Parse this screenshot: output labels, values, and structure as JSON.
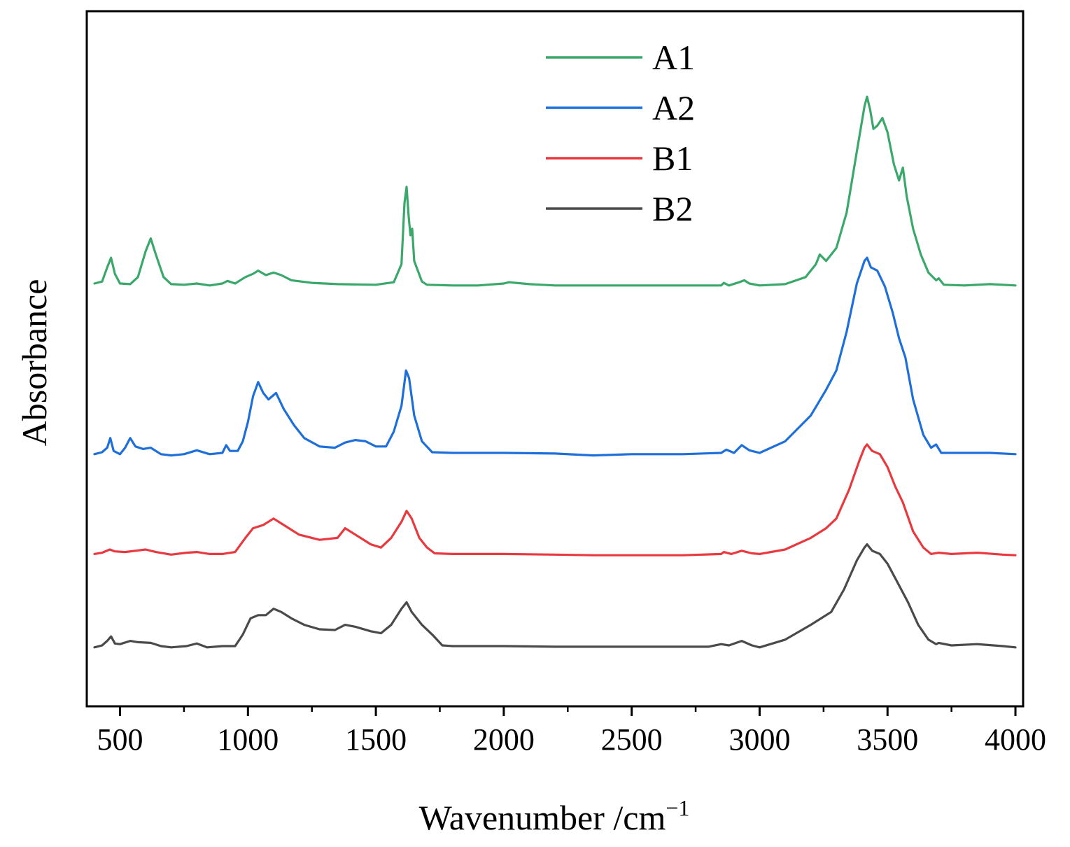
{
  "chart_data": {
    "type": "line",
    "title": "",
    "xlabel": "Wavenumber /cm",
    "xlabel_superscript": "−1",
    "ylabel": "Absorbance",
    "xlim": [
      370,
      4030
    ],
    "ylim": [
      0,
      10
    ],
    "x_ticks": [
      500,
      1000,
      1500,
      2000,
      2500,
      3000,
      3500,
      4000
    ],
    "x_tick_labels": [
      "500",
      "1000",
      "1500",
      "2000",
      "2500",
      "3000",
      "3500",
      "4000"
    ],
    "x_minor_ticks": [
      750,
      1250,
      1750,
      2250,
      2750,
      3250,
      3750
    ],
    "y_ticks_shown": false,
    "grid": false,
    "legend_position": "top-center",
    "series": [
      {
        "name": "A1",
        "color": "#3aa86b",
        "points": [
          [
            400,
            6.25
          ],
          [
            430,
            6.28
          ],
          [
            450,
            6.5
          ],
          [
            465,
            6.65
          ],
          [
            480,
            6.4
          ],
          [
            500,
            6.25
          ],
          [
            540,
            6.24
          ],
          [
            570,
            6.35
          ],
          [
            600,
            6.75
          ],
          [
            620,
            6.95
          ],
          [
            640,
            6.7
          ],
          [
            670,
            6.35
          ],
          [
            700,
            6.24
          ],
          [
            750,
            6.23
          ],
          [
            800,
            6.25
          ],
          [
            850,
            6.22
          ],
          [
            900,
            6.25
          ],
          [
            920,
            6.29
          ],
          [
            950,
            6.25
          ],
          [
            990,
            6.35
          ],
          [
            1020,
            6.4
          ],
          [
            1040,
            6.45
          ],
          [
            1070,
            6.38
          ],
          [
            1100,
            6.42
          ],
          [
            1130,
            6.38
          ],
          [
            1170,
            6.3
          ],
          [
            1250,
            6.26
          ],
          [
            1350,
            6.24
          ],
          [
            1500,
            6.23
          ],
          [
            1570,
            6.27
          ],
          [
            1600,
            6.55
          ],
          [
            1612,
            7.5
          ],
          [
            1620,
            7.75
          ],
          [
            1628,
            7.3
          ],
          [
            1635,
            7.0
          ],
          [
            1642,
            7.1
          ],
          [
            1650,
            6.6
          ],
          [
            1680,
            6.28
          ],
          [
            1700,
            6.23
          ],
          [
            1800,
            6.22
          ],
          [
            1900,
            6.22
          ],
          [
            2000,
            6.25
          ],
          [
            2020,
            6.27
          ],
          [
            2100,
            6.24
          ],
          [
            2200,
            6.22
          ],
          [
            2400,
            6.22
          ],
          [
            2600,
            6.22
          ],
          [
            2800,
            6.22
          ],
          [
            2850,
            6.22
          ],
          [
            2860,
            6.26
          ],
          [
            2880,
            6.22
          ],
          [
            2920,
            6.27
          ],
          [
            2940,
            6.3
          ],
          [
            2960,
            6.25
          ],
          [
            3000,
            6.22
          ],
          [
            3100,
            6.24
          ],
          [
            3180,
            6.35
          ],
          [
            3220,
            6.55
          ],
          [
            3235,
            6.7
          ],
          [
            3260,
            6.6
          ],
          [
            3300,
            6.8
          ],
          [
            3340,
            7.35
          ],
          [
            3380,
            8.3
          ],
          [
            3410,
            9.0
          ],
          [
            3420,
            9.15
          ],
          [
            3432,
            8.95
          ],
          [
            3445,
            8.65
          ],
          [
            3460,
            8.7
          ],
          [
            3480,
            8.82
          ],
          [
            3500,
            8.6
          ],
          [
            3525,
            8.1
          ],
          [
            3545,
            7.85
          ],
          [
            3560,
            8.05
          ],
          [
            3575,
            7.6
          ],
          [
            3600,
            7.1
          ],
          [
            3630,
            6.7
          ],
          [
            3660,
            6.42
          ],
          [
            3690,
            6.3
          ],
          [
            3700,
            6.33
          ],
          [
            3720,
            6.23
          ],
          [
            3800,
            6.22
          ],
          [
            3900,
            6.24
          ],
          [
            3950,
            6.23
          ],
          [
            4000,
            6.22
          ]
        ]
      },
      {
        "name": "A2",
        "color": "#1e6fd9",
        "points": [
          [
            400,
            3.6
          ],
          [
            430,
            3.63
          ],
          [
            450,
            3.7
          ],
          [
            462,
            3.85
          ],
          [
            475,
            3.65
          ],
          [
            500,
            3.6
          ],
          [
            520,
            3.7
          ],
          [
            540,
            3.85
          ],
          [
            560,
            3.72
          ],
          [
            590,
            3.68
          ],
          [
            620,
            3.7
          ],
          [
            660,
            3.6
          ],
          [
            700,
            3.58
          ],
          [
            750,
            3.6
          ],
          [
            800,
            3.66
          ],
          [
            850,
            3.6
          ],
          [
            900,
            3.62
          ],
          [
            915,
            3.74
          ],
          [
            930,
            3.65
          ],
          [
            960,
            3.65
          ],
          [
            980,
            3.8
          ],
          [
            1000,
            4.1
          ],
          [
            1020,
            4.5
          ],
          [
            1040,
            4.72
          ],
          [
            1060,
            4.55
          ],
          [
            1080,
            4.45
          ],
          [
            1110,
            4.55
          ],
          [
            1140,
            4.3
          ],
          [
            1180,
            4.05
          ],
          [
            1220,
            3.85
          ],
          [
            1280,
            3.72
          ],
          [
            1340,
            3.7
          ],
          [
            1380,
            3.78
          ],
          [
            1420,
            3.82
          ],
          [
            1460,
            3.8
          ],
          [
            1500,
            3.72
          ],
          [
            1540,
            3.72
          ],
          [
            1570,
            3.95
          ],
          [
            1600,
            4.35
          ],
          [
            1618,
            4.9
          ],
          [
            1630,
            4.78
          ],
          [
            1650,
            4.2
          ],
          [
            1680,
            3.8
          ],
          [
            1720,
            3.63
          ],
          [
            1800,
            3.62
          ],
          [
            1900,
            3.62
          ],
          [
            2000,
            3.62
          ],
          [
            2200,
            3.61
          ],
          [
            2350,
            3.58
          ],
          [
            2500,
            3.6
          ],
          [
            2700,
            3.6
          ],
          [
            2850,
            3.62
          ],
          [
            2870,
            3.67
          ],
          [
            2900,
            3.62
          ],
          [
            2930,
            3.74
          ],
          [
            2960,
            3.66
          ],
          [
            3000,
            3.62
          ],
          [
            3100,
            3.8
          ],
          [
            3200,
            4.2
          ],
          [
            3260,
            4.6
          ],
          [
            3300,
            4.9
          ],
          [
            3340,
            5.5
          ],
          [
            3380,
            6.25
          ],
          [
            3410,
            6.6
          ],
          [
            3420,
            6.65
          ],
          [
            3435,
            6.5
          ],
          [
            3460,
            6.45
          ],
          [
            3490,
            6.2
          ],
          [
            3520,
            5.8
          ],
          [
            3545,
            5.4
          ],
          [
            3570,
            5.1
          ],
          [
            3600,
            4.45
          ],
          [
            3640,
            3.9
          ],
          [
            3670,
            3.7
          ],
          [
            3690,
            3.75
          ],
          [
            3710,
            3.62
          ],
          [
            3800,
            3.62
          ],
          [
            3900,
            3.62
          ],
          [
            4000,
            3.6
          ]
        ]
      },
      {
        "name": "B1",
        "color": "#e8393f",
        "points": [
          [
            400,
            2.05
          ],
          [
            430,
            2.07
          ],
          [
            460,
            2.12
          ],
          [
            480,
            2.09
          ],
          [
            520,
            2.08
          ],
          [
            560,
            2.1
          ],
          [
            600,
            2.12
          ],
          [
            640,
            2.08
          ],
          [
            700,
            2.04
          ],
          [
            760,
            2.07
          ],
          [
            800,
            2.08
          ],
          [
            850,
            2.05
          ],
          [
            900,
            2.05
          ],
          [
            950,
            2.08
          ],
          [
            990,
            2.3
          ],
          [
            1020,
            2.45
          ],
          [
            1060,
            2.5
          ],
          [
            1100,
            2.6
          ],
          [
            1140,
            2.5
          ],
          [
            1200,
            2.35
          ],
          [
            1280,
            2.27
          ],
          [
            1350,
            2.3
          ],
          [
            1380,
            2.45
          ],
          [
            1420,
            2.35
          ],
          [
            1480,
            2.2
          ],
          [
            1520,
            2.15
          ],
          [
            1560,
            2.3
          ],
          [
            1600,
            2.55
          ],
          [
            1620,
            2.72
          ],
          [
            1640,
            2.6
          ],
          [
            1670,
            2.3
          ],
          [
            1700,
            2.15
          ],
          [
            1730,
            2.06
          ],
          [
            1800,
            2.05
          ],
          [
            1900,
            2.05
          ],
          [
            2000,
            2.05
          ],
          [
            2200,
            2.04
          ],
          [
            2350,
            2.03
          ],
          [
            2500,
            2.03
          ],
          [
            2700,
            2.03
          ],
          [
            2850,
            2.05
          ],
          [
            2860,
            2.08
          ],
          [
            2890,
            2.05
          ],
          [
            2930,
            2.1
          ],
          [
            2970,
            2.06
          ],
          [
            3000,
            2.05
          ],
          [
            3100,
            2.12
          ],
          [
            3200,
            2.3
          ],
          [
            3260,
            2.45
          ],
          [
            3300,
            2.6
          ],
          [
            3350,
            3.05
          ],
          [
            3390,
            3.5
          ],
          [
            3410,
            3.7
          ],
          [
            3420,
            3.75
          ],
          [
            3440,
            3.65
          ],
          [
            3470,
            3.6
          ],
          [
            3500,
            3.4
          ],
          [
            3530,
            3.1
          ],
          [
            3560,
            2.85
          ],
          [
            3600,
            2.4
          ],
          [
            3640,
            2.15
          ],
          [
            3670,
            2.05
          ],
          [
            3700,
            2.07
          ],
          [
            3750,
            2.05
          ],
          [
            3850,
            2.07
          ],
          [
            3950,
            2.04
          ],
          [
            4000,
            2.03
          ]
        ]
      },
      {
        "name": "B2",
        "color": "#4a4a4a",
        "points": [
          [
            400,
            0.6
          ],
          [
            430,
            0.63
          ],
          [
            450,
            0.7
          ],
          [
            465,
            0.77
          ],
          [
            480,
            0.66
          ],
          [
            500,
            0.65
          ],
          [
            540,
            0.7
          ],
          [
            570,
            0.68
          ],
          [
            620,
            0.67
          ],
          [
            660,
            0.62
          ],
          [
            700,
            0.6
          ],
          [
            760,
            0.62
          ],
          [
            800,
            0.66
          ],
          [
            840,
            0.6
          ],
          [
            900,
            0.62
          ],
          [
            950,
            0.62
          ],
          [
            980,
            0.8
          ],
          [
            1010,
            1.05
          ],
          [
            1040,
            1.1
          ],
          [
            1070,
            1.1
          ],
          [
            1100,
            1.2
          ],
          [
            1130,
            1.15
          ],
          [
            1170,
            1.05
          ],
          [
            1220,
            0.95
          ],
          [
            1280,
            0.88
          ],
          [
            1340,
            0.87
          ],
          [
            1380,
            0.95
          ],
          [
            1420,
            0.92
          ],
          [
            1480,
            0.85
          ],
          [
            1520,
            0.82
          ],
          [
            1560,
            0.95
          ],
          [
            1600,
            1.2
          ],
          [
            1620,
            1.3
          ],
          [
            1640,
            1.15
          ],
          [
            1680,
            0.95
          ],
          [
            1720,
            0.8
          ],
          [
            1760,
            0.63
          ],
          [
            1800,
            0.62
          ],
          [
            1900,
            0.62
          ],
          [
            2000,
            0.62
          ],
          [
            2200,
            0.61
          ],
          [
            2400,
            0.61
          ],
          [
            2600,
            0.61
          ],
          [
            2800,
            0.61
          ],
          [
            2850,
            0.65
          ],
          [
            2880,
            0.63
          ],
          [
            2930,
            0.7
          ],
          [
            2970,
            0.63
          ],
          [
            3000,
            0.6
          ],
          [
            3100,
            0.72
          ],
          [
            3200,
            0.95
          ],
          [
            3280,
            1.15
          ],
          [
            3330,
            1.5
          ],
          [
            3380,
            1.95
          ],
          [
            3410,
            2.15
          ],
          [
            3420,
            2.2
          ],
          [
            3440,
            2.1
          ],
          [
            3470,
            2.05
          ],
          [
            3500,
            1.9
          ],
          [
            3540,
            1.6
          ],
          [
            3580,
            1.3
          ],
          [
            3620,
            0.95
          ],
          [
            3660,
            0.72
          ],
          [
            3690,
            0.65
          ],
          [
            3700,
            0.67
          ],
          [
            3750,
            0.63
          ],
          [
            3850,
            0.65
          ],
          [
            3950,
            0.62
          ],
          [
            4000,
            0.6
          ]
        ]
      }
    ]
  }
}
